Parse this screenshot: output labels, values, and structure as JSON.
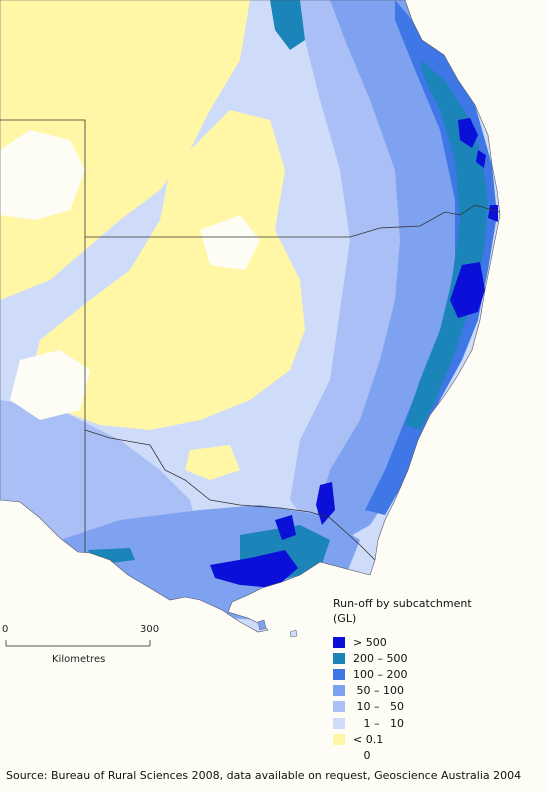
{
  "map": {
    "legend": {
      "title": "Run-off by subcatchment\n (GL)",
      "items": [
        {
          "label": "> 500",
          "color": "#0a10d8"
        },
        {
          "label": "200 – 500",
          "color": "#1b84b8"
        },
        {
          "label": "100 – 200",
          "color": "#3f78e6"
        },
        {
          "label": " 50 – 100",
          "color": "#7ea2f0"
        },
        {
          "label": " 10 –   50",
          "color": "#a9bff6"
        },
        {
          "label": "   1 –   10",
          "color": "#cfdcf9"
        },
        {
          "label": "< 0.1",
          "color": "#fff7a6"
        },
        {
          "label": "   0",
          "color": ""
        }
      ]
    },
    "scale_bar": {
      "start": "0",
      "end": "300",
      "unit": "Kilometres"
    },
    "source": "Source: Bureau of Rural Sciences 2008, data available on request, Geoscience Australia 2004"
  }
}
